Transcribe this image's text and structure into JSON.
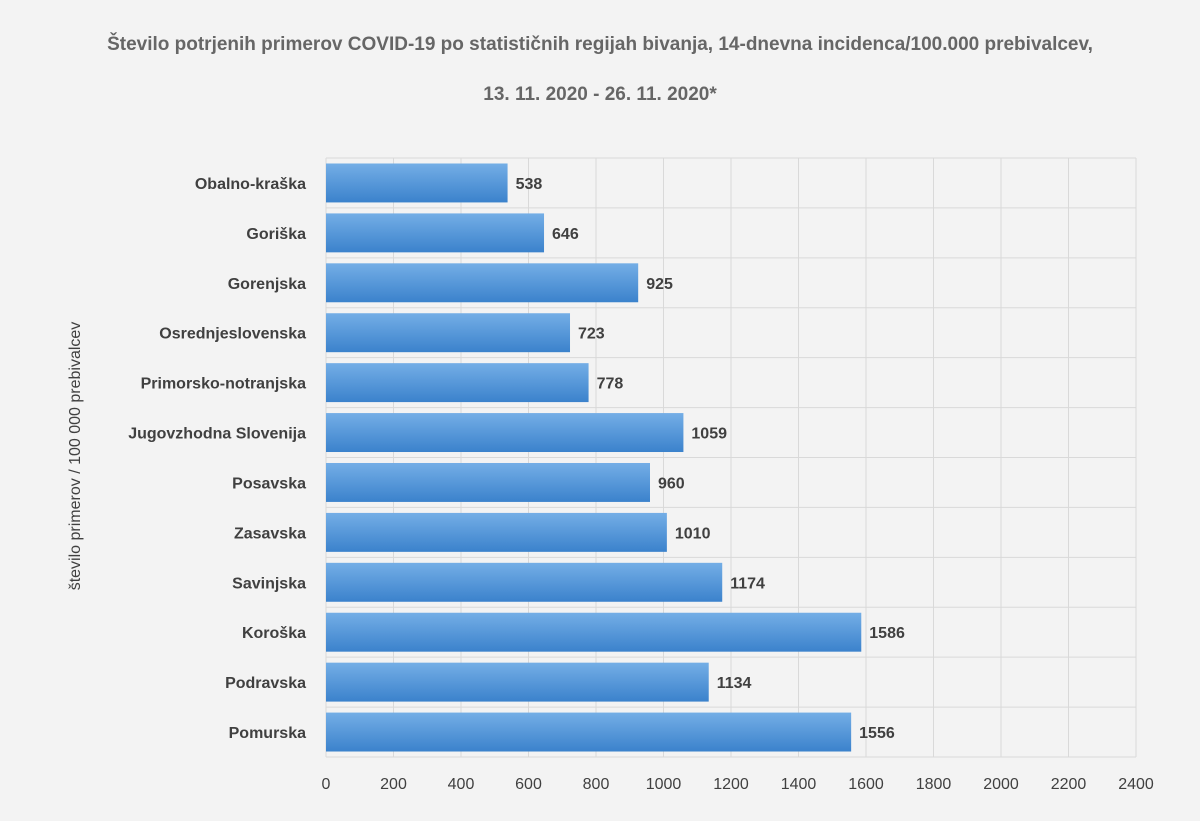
{
  "chart_data": {
    "type": "bar",
    "orientation": "horizontal",
    "title": "Število potrjenih primerov COVID-19 po statističnih regijah bivanja, 14-dnevna incidenca/100.000 prebivalcev,",
    "subtitle": "13. 11. 2020 - 26. 11. 2020*",
    "ylabel": "število primerov / 100 000 prebivalcev",
    "xlabel": "",
    "categories": [
      "Obalno-kraška",
      "Goriška",
      "Gorenjska",
      "Osrednjeslovenska",
      "Primorsko-notranjska",
      "Jugovzhodna Slovenija",
      "Posavska",
      "Zasavska",
      "Savinjska",
      "Koroška",
      "Podravska",
      "Pomurska"
    ],
    "values": [
      538,
      646,
      925,
      723,
      778,
      1059,
      960,
      1010,
      1174,
      1586,
      1134,
      1556
    ],
    "data_labels": [
      "538",
      "646",
      "925",
      "723",
      "778",
      "1059",
      "960",
      "1010",
      "1174",
      "1586",
      "1134",
      "1556"
    ],
    "xlim": [
      0,
      2400
    ],
    "x_ticks": [
      0,
      200,
      400,
      600,
      800,
      1000,
      1200,
      1400,
      1600,
      1800,
      2000,
      2200,
      2400
    ],
    "x_tick_labels": [
      "0",
      "200",
      "400",
      "600",
      "800",
      "1000",
      "1200",
      "1400",
      "1600",
      "1800",
      "2000",
      "2200",
      "2400"
    ],
    "grid": true,
    "legend": false,
    "colors": {
      "bar_top": "#74aee6",
      "bar_bottom": "#3b82cc",
      "grid": "#d9d9d9",
      "text": "#404040",
      "title": "#666666",
      "background": "#f3f3f3"
    }
  }
}
